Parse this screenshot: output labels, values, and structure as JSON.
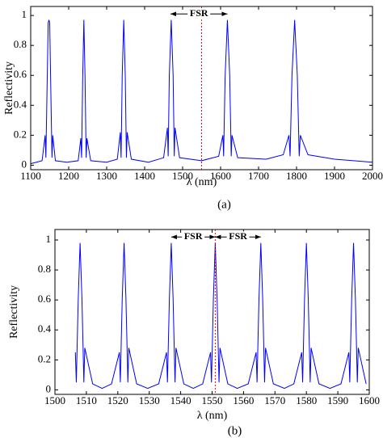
{
  "chart_data": [
    {
      "type": "line",
      "xlabel": "λ (nm)",
      "ylabel": "Reflectivity",
      "caption": "(a)",
      "xlim": [
        1100,
        2000
      ],
      "ylim": [
        -0.03,
        1.06
      ],
      "xticks": [
        1100,
        1200,
        1300,
        1400,
        1500,
        1600,
        1700,
        1800,
        1900,
        2000
      ],
      "yticks": [
        0,
        0.2,
        0.4,
        0.6,
        0.8,
        1
      ],
      "x": [
        1100,
        1130,
        1138,
        1140,
        1143,
        1146,
        1148,
        1150,
        1153,
        1156,
        1158,
        1165,
        1195,
        1225,
        1232,
        1234,
        1237,
        1240,
        1243,
        1246,
        1248,
        1258,
        1300,
        1328,
        1336,
        1338,
        1341,
        1345,
        1349,
        1352,
        1354,
        1365,
        1410,
        1450,
        1460,
        1462,
        1465,
        1470,
        1475,
        1478,
        1480,
        1492,
        1550,
        1595,
        1606,
        1608,
        1612,
        1618,
        1624,
        1628,
        1630,
        1645,
        1720,
        1765,
        1780,
        1783,
        1788,
        1795,
        1802,
        1807,
        1810,
        1830,
        1900,
        2000
      ],
      "series": [
        {
          "color": "#0000ff",
          "values": [
            0.01,
            0.03,
            0.2,
            0.05,
            0.5,
            0.95,
            0.97,
            0.95,
            0.5,
            0.05,
            0.2,
            0.03,
            0.02,
            0.03,
            0.18,
            0.05,
            0.6,
            0.97,
            0.6,
            0.05,
            0.18,
            0.03,
            0.02,
            0.04,
            0.22,
            0.05,
            0.6,
            0.97,
            0.6,
            0.05,
            0.22,
            0.04,
            0.02,
            0.05,
            0.25,
            0.06,
            0.6,
            0.97,
            0.6,
            0.06,
            0.25,
            0.05,
            0.03,
            0.06,
            0.2,
            0.06,
            0.6,
            0.97,
            0.6,
            0.06,
            0.2,
            0.05,
            0.04,
            0.07,
            0.2,
            0.06,
            0.6,
            0.97,
            0.6,
            0.06,
            0.2,
            0.07,
            0.04,
            0.02
          ]
        }
      ],
      "marker_line_x": 1550,
      "marker_line_color": "#ff0000",
      "annotations": [
        {
          "text": "FSR",
          "x": [
            1468,
            1618
          ],
          "y": 1.01
        }
      ]
    },
    {
      "type": "line",
      "xlabel": "λ (nm)",
      "ylabel": "Reflectivity",
      "caption": "(b)",
      "xlim": [
        1500,
        1600
      ],
      "ylim": [
        -0.03,
        1.07
      ],
      "xticks": [
        1500,
        1510,
        1520,
        1530,
        1540,
        1550,
        1560,
        1570,
        1580,
        1590,
        1600
      ],
      "yticks": [
        0,
        0.2,
        0.4,
        0.6,
        0.8,
        1
      ],
      "x": [
        1506.5,
        1506.8,
        1507.4,
        1508,
        1508.6,
        1509.2,
        1509.5,
        1512,
        1515,
        1518,
        1520.5,
        1520.8,
        1521.4,
        1522,
        1522.6,
        1523.2,
        1523.5,
        1526,
        1529.5,
        1533,
        1535.5,
        1535.8,
        1536.4,
        1537,
        1537.6,
        1538.2,
        1538.5,
        1541,
        1544,
        1547,
        1549.5,
        1549.8,
        1550.4,
        1551,
        1551.6,
        1552.2,
        1552.5,
        1555,
        1558,
        1561.5,
        1564,
        1564.3,
        1564.9,
        1565.5,
        1566.1,
        1566.7,
        1567,
        1569.5,
        1573,
        1576,
        1578.5,
        1578.8,
        1579.4,
        1580,
        1580.6,
        1581.2,
        1581.5,
        1584,
        1587.5,
        1591,
        1593.5,
        1593.8,
        1594.4,
        1595,
        1595.6,
        1596.2,
        1596.5,
        1599
      ],
      "series": [
        {
          "color": "#0000ff",
          "values": [
            0.25,
            0.05,
            0.6,
            0.98,
            0.6,
            0.05,
            0.28,
            0.04,
            0.01,
            0.04,
            0.25,
            0.05,
            0.6,
            0.98,
            0.6,
            0.05,
            0.28,
            0.04,
            0.01,
            0.04,
            0.25,
            0.05,
            0.6,
            0.98,
            0.6,
            0.05,
            0.28,
            0.04,
            0.01,
            0.04,
            0.25,
            0.05,
            0.6,
            0.98,
            0.6,
            0.05,
            0.28,
            0.04,
            0.01,
            0.04,
            0.25,
            0.05,
            0.6,
            0.98,
            0.6,
            0.05,
            0.28,
            0.04,
            0.01,
            0.04,
            0.25,
            0.05,
            0.6,
            0.98,
            0.6,
            0.05,
            0.28,
            0.04,
            0.01,
            0.04,
            0.25,
            0.05,
            0.6,
            0.98,
            0.6,
            0.05,
            0.28,
            0.04
          ]
        }
      ],
      "marker_line_x": 1551,
      "marker_line_color": "#ff0000",
      "annotations": [
        {
          "text": "FSR",
          "x": [
            1537,
            1551
          ],
          "y": 1.02
        },
        {
          "text": "FSR",
          "x": [
            1551,
            1565.5
          ],
          "y": 1.02
        }
      ]
    }
  ]
}
